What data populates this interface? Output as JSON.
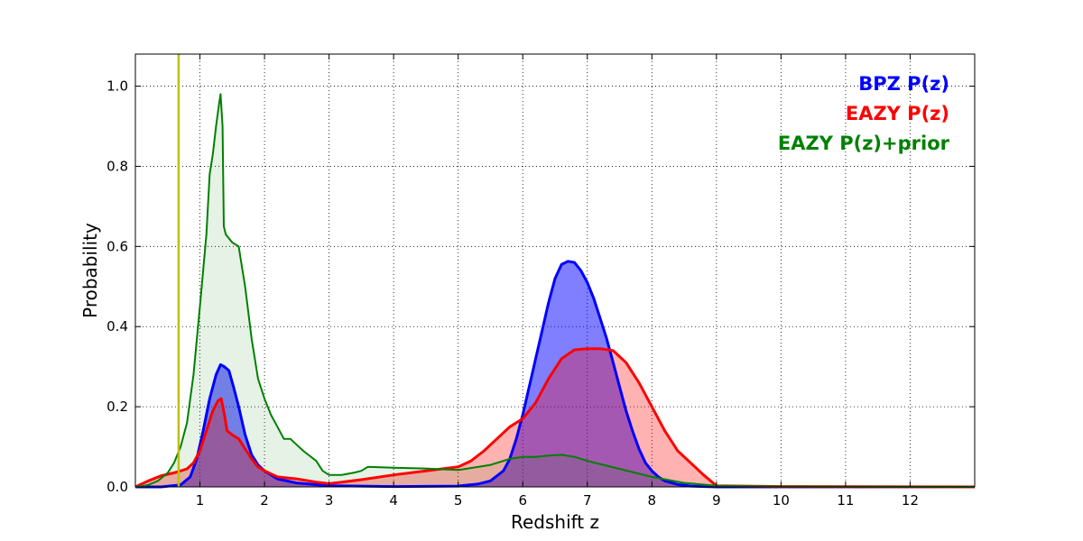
{
  "chart_data": {
    "type": "area",
    "title": "",
    "xlabel": "Redshift z",
    "ylabel": "Probability",
    "xlim": [
      0,
      13
    ],
    "ylim": [
      0,
      1.08
    ],
    "xticks": [
      1,
      2,
      3,
      4,
      5,
      6,
      7,
      8,
      9,
      10,
      11,
      12
    ],
    "xtick_labels": [
      "1",
      "2",
      "3",
      "4",
      "5",
      "6",
      "7",
      "8",
      "9",
      "10",
      "11",
      "12"
    ],
    "yticks": [
      0.0,
      0.2,
      0.4,
      0.6,
      0.8,
      1.0
    ],
    "ytick_labels": [
      "0.0",
      "0.2",
      "0.4",
      "0.6",
      "0.8",
      "1.0"
    ],
    "grid": true,
    "legend_position": "top-right",
    "vertical_line": {
      "x": 0.67,
      "color": "#bfbf00"
    },
    "series": [
      {
        "name": "BPZ P(z)",
        "color": "#0000ff",
        "fill_color": "#0000ff",
        "fill_opacity": 0.5,
        "x": [
          0,
          0.4,
          0.7,
          0.85,
          0.95,
          1.05,
          1.15,
          1.25,
          1.32,
          1.38,
          1.45,
          1.52,
          1.6,
          1.7,
          1.8,
          1.9,
          2.0,
          2.2,
          2.5,
          3.0,
          4.0,
          5.0,
          5.3,
          5.5,
          5.7,
          5.8,
          5.9,
          6.0,
          6.1,
          6.2,
          6.3,
          6.4,
          6.5,
          6.6,
          6.7,
          6.8,
          6.9,
          7.0,
          7.1,
          7.2,
          7.3,
          7.4,
          7.5,
          7.6,
          7.7,
          7.8,
          7.9,
          8.0,
          8.1,
          8.2,
          8.4,
          8.6,
          9.0,
          10.0,
          13.0
        ],
        "values": [
          0,
          0,
          0.005,
          0.025,
          0.07,
          0.14,
          0.22,
          0.28,
          0.305,
          0.3,
          0.29,
          0.25,
          0.2,
          0.13,
          0.08,
          0.055,
          0.04,
          0.02,
          0.01,
          0.003,
          0.001,
          0.002,
          0.007,
          0.015,
          0.04,
          0.07,
          0.12,
          0.18,
          0.25,
          0.32,
          0.39,
          0.46,
          0.52,
          0.555,
          0.563,
          0.56,
          0.54,
          0.51,
          0.47,
          0.42,
          0.37,
          0.31,
          0.25,
          0.19,
          0.14,
          0.095,
          0.06,
          0.04,
          0.025,
          0.015,
          0.006,
          0.002,
          0,
          0,
          0
        ]
      },
      {
        "name": "EAZY P(z)",
        "color": "#ff0000",
        "fill_color": "#ff0000",
        "fill_opacity": 0.3,
        "x": [
          0,
          0.2,
          0.4,
          0.6,
          0.8,
          0.9,
          1.0,
          1.1,
          1.2,
          1.28,
          1.33,
          1.38,
          1.42,
          1.5,
          1.6,
          1.7,
          1.8,
          1.9,
          2.0,
          2.2,
          2.5,
          2.8,
          3.0,
          3.2,
          3.5,
          4.0,
          4.5,
          5.0,
          5.2,
          5.4,
          5.6,
          5.8,
          6.0,
          6.2,
          6.4,
          6.6,
          6.8,
          7.0,
          7.2,
          7.4,
          7.6,
          7.8,
          8.0,
          8.2,
          8.4,
          8.6,
          8.8,
          9.0,
          10.0,
          13.0
        ],
        "values": [
          0,
          0.015,
          0.028,
          0.035,
          0.045,
          0.06,
          0.09,
          0.14,
          0.19,
          0.215,
          0.22,
          0.18,
          0.14,
          0.13,
          0.12,
          0.095,
          0.07,
          0.05,
          0.04,
          0.025,
          0.02,
          0.012,
          0.008,
          0.012,
          0.018,
          0.03,
          0.04,
          0.05,
          0.065,
          0.09,
          0.12,
          0.15,
          0.17,
          0.21,
          0.27,
          0.32,
          0.342,
          0.345,
          0.345,
          0.34,
          0.31,
          0.26,
          0.2,
          0.14,
          0.09,
          0.06,
          0.03,
          0.003,
          0.001,
          0
        ]
      },
      {
        "name": "EAZY P(z)+prior",
        "color": "#008000",
        "fill_color": "#008000",
        "fill_opacity": 0.1,
        "x": [
          0,
          0.1,
          0.2,
          0.35,
          0.5,
          0.6,
          0.7,
          0.8,
          0.9,
          1.0,
          1.1,
          1.15,
          1.2,
          1.25,
          1.3,
          1.32,
          1.35,
          1.37,
          1.4,
          1.45,
          1.5,
          1.6,
          1.65,
          1.7,
          1.8,
          1.9,
          2.0,
          2.1,
          2.2,
          2.3,
          2.4,
          2.5,
          2.6,
          2.8,
          2.9,
          3.0,
          3.2,
          3.4,
          3.5,
          3.6,
          4.0,
          4.5,
          5.0,
          5.5,
          5.8,
          6.0,
          6.2,
          6.4,
          6.6,
          6.8,
          7.0,
          7.5,
          8.0,
          8.5,
          9.0,
          10.0,
          13.0
        ],
        "values": [
          0,
          0.002,
          0.005,
          0.015,
          0.035,
          0.06,
          0.1,
          0.16,
          0.28,
          0.45,
          0.63,
          0.78,
          0.83,
          0.9,
          0.96,
          0.98,
          0.9,
          0.65,
          0.63,
          0.62,
          0.61,
          0.6,
          0.55,
          0.5,
          0.37,
          0.27,
          0.22,
          0.18,
          0.15,
          0.12,
          0.12,
          0.105,
          0.09,
          0.065,
          0.04,
          0.03,
          0.03,
          0.036,
          0.04,
          0.05,
          0.048,
          0.046,
          0.042,
          0.055,
          0.07,
          0.075,
          0.075,
          0.078,
          0.08,
          0.075,
          0.065,
          0.045,
          0.025,
          0.01,
          0.003,
          0.001,
          0
        ]
      }
    ]
  }
}
